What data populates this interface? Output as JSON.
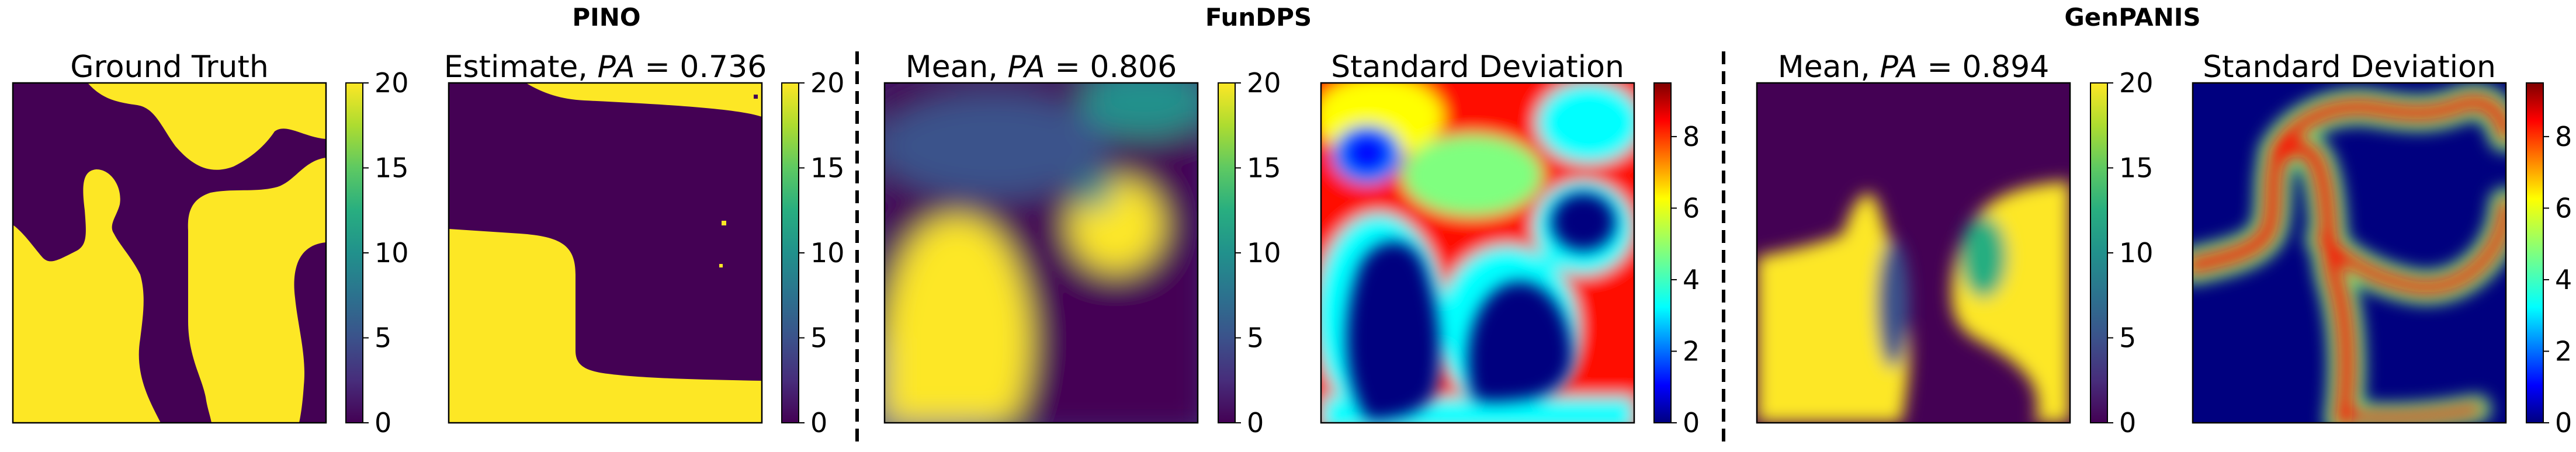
{
  "colors": {
    "viridis": [
      "#440154",
      "#472d7b",
      "#3b528b",
      "#2c728e",
      "#21918c",
      "#28ae80",
      "#5ec962",
      "#addc30",
      "#fde725"
    ],
    "jet": [
      "#00007f",
      "#0000ff",
      "#007fff",
      "#00ffff",
      "#7fff7f",
      "#ffff00",
      "#ff7f00",
      "#ff0000",
      "#7f0000"
    ]
  },
  "chart_data": [
    {
      "type": "heatmap",
      "title": "Ground Truth",
      "colormap": "viridis",
      "clim": [
        0,
        20
      ],
      "colorbar_ticks": [
        "0",
        "5",
        "10",
        "15",
        "20"
      ],
      "values": "binary field, values 0 or 20"
    },
    {
      "type": "heatmap",
      "group_title": "PINO",
      "title": "Estimate, PA = 0.736",
      "title_plain": "Estimate, ",
      "title_math": "PA",
      "title_value": " = 0.736",
      "colormap": "viridis",
      "clim": [
        0,
        20
      ],
      "colorbar_ticks": [
        "0",
        "5",
        "10",
        "15",
        "20"
      ]
    },
    {
      "type": "heatmap",
      "group_title": "FunDPS",
      "title": "Mean, PA = 0.806",
      "title_plain": "Mean, ",
      "title_math": "PA",
      "title_value": " = 0.806",
      "colormap": "viridis",
      "clim": [
        0,
        20
      ],
      "colorbar_ticks": [
        "0",
        "5",
        "10",
        "15",
        "20"
      ]
    },
    {
      "type": "heatmap",
      "title": "Standard Deviation",
      "colormap": "jet",
      "clim": [
        0,
        9.5
      ],
      "colorbar_ticks": [
        "0",
        "2",
        "4",
        "6",
        "8"
      ]
    },
    {
      "type": "heatmap",
      "group_title": "GenPANIS",
      "title": "Mean, PA = 0.894",
      "title_plain": "Mean, ",
      "title_math": "PA",
      "title_value": " = 0.894",
      "colormap": "viridis",
      "clim": [
        0,
        20
      ],
      "colorbar_ticks": [
        "0",
        "5",
        "10",
        "15",
        "20"
      ]
    },
    {
      "type": "heatmap",
      "title": "Standard Deviation",
      "colormap": "jet",
      "clim": [
        0,
        9.5
      ],
      "colorbar_ticks": [
        "0",
        "2",
        "4",
        "6",
        "8"
      ]
    }
  ],
  "groups": [
    "PINO",
    "FunDPS",
    "GenPANIS"
  ]
}
